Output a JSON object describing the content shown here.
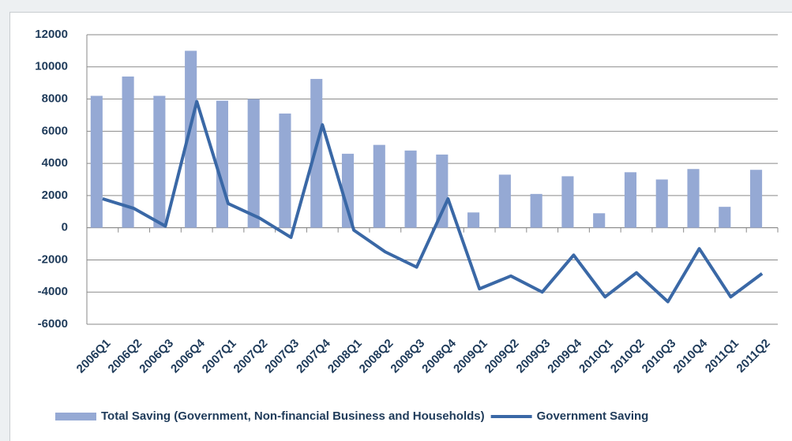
{
  "chart_data": {
    "type": "bar",
    "categories": [
      "2006Q1",
      "2006Q2",
      "2006Q3",
      "2006Q4",
      "2007Q1",
      "2007Q2",
      "2007Q3",
      "2007Q4",
      "2008Q1",
      "2008Q2",
      "2008Q3",
      "2008Q4",
      "2009Q1",
      "2009Q2",
      "2009Q3",
      "2009Q4",
      "2010Q1",
      "2010Q2",
      "2010Q3",
      "2010Q4",
      "2011Q1",
      "2011Q2"
    ],
    "series": [
      {
        "name": "Total Saving (Government, Non-financial Business and Households)",
        "type": "bar",
        "color": "#95a9d4",
        "values": [
          8200,
          9400,
          8200,
          11000,
          7900,
          8000,
          7100,
          9250,
          4600,
          5150,
          4800,
          4550,
          950,
          3300,
          2100,
          3200,
          900,
          3450,
          3000,
          3650,
          1300,
          3600
        ]
      },
      {
        "name": "Government Saving",
        "type": "line",
        "color": "#3a68a6",
        "values": [
          1800,
          1200,
          100,
          7850,
          1500,
          600,
          -600,
          6400,
          -150,
          -1500,
          -2450,
          1800,
          -3800,
          -3000,
          -4000,
          -1700,
          -4300,
          -2800,
          -4600,
          -1300,
          -4300,
          -2850
        ]
      }
    ],
    "ylim": [
      -6000,
      12000
    ],
    "yticks": [
      -6000,
      -4000,
      -2000,
      0,
      2000,
      4000,
      6000,
      8000,
      10000,
      12000
    ],
    "grid": true,
    "legend": "bottom"
  }
}
